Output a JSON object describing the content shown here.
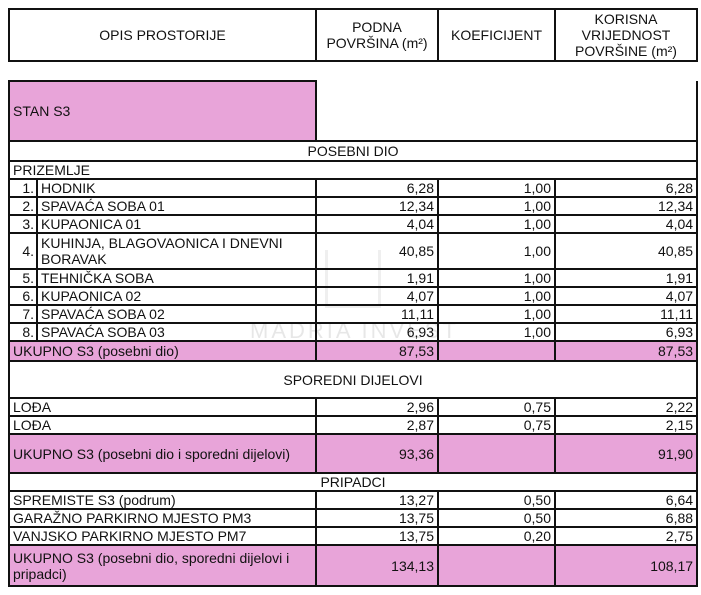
{
  "header": {
    "col1": "OPIS PROSTORIJE",
    "col2": "PODNA POVRŠINA (m²)",
    "col3": "KOEFICIJENT",
    "col4": "KORISNA VRIJEDNOST POVRŠINE (m²)"
  },
  "unit": "STAN S3",
  "sections": {
    "posebni": "POSEBNI DIO",
    "prizemlje": "PRIZEMLJE",
    "sporedni": "SPOREDNI DIJELOVI",
    "pripadci": "PRIPADCI"
  },
  "rooms": [
    {
      "no": "1.",
      "name": "HODNIK",
      "area": "6,28",
      "coef": "1,00",
      "useful": "6,28"
    },
    {
      "no": "2.",
      "name": "SPAVAĆA SOBA 01",
      "area": "12,34",
      "coef": "1,00",
      "useful": "12,34"
    },
    {
      "no": "3.",
      "name": "KUPAONICA 01",
      "area": "4,04",
      "coef": "1,00",
      "useful": "4,04"
    },
    {
      "no": "4.",
      "name": "KUHINJA, BLAGOVAONICA I DNEVNI BORAVAK",
      "area": "40,85",
      "coef": "1,00",
      "useful": "40,85"
    },
    {
      "no": "5.",
      "name": "TEHNIČKA SOBA",
      "area": "1,91",
      "coef": "1,00",
      "useful": "1,91"
    },
    {
      "no": "6.",
      "name": "KUPAONICA 02",
      "area": "4,07",
      "coef": "1,00",
      "useful": "4,07"
    },
    {
      "no": "7.",
      "name": "SPAVAĆA SOBA 02",
      "area": "11,11",
      "coef": "1,00",
      "useful": "11,11"
    },
    {
      "no": "8.",
      "name": "SPAVAĆA SOBA 03",
      "area": "6,93",
      "coef": "1,00",
      "useful": "6,93"
    }
  ],
  "total1": {
    "label": "UKUPNO S3 (posebni dio)",
    "area": "87,53",
    "useful": "87,53"
  },
  "side_parts": [
    {
      "name": "LOĐA",
      "area": "2,96",
      "coef": "0,75",
      "useful": "2,22"
    },
    {
      "name": "LOĐA",
      "area": "2,87",
      "coef": "0,75",
      "useful": "2,15"
    }
  ],
  "total2": {
    "label": "UKUPNO S3 (posebni dio i sporedni dijelovi)",
    "area": "93,36",
    "useful": "91,90"
  },
  "appurtenances": [
    {
      "name": "SPREMISTE S3 (podrum)",
      "area": "13,27",
      "coef": "0,50",
      "useful": "6,64"
    },
    {
      "name": "GARAŽNO PARKIRNO MJESTO PM3",
      "area": "13,75",
      "coef": "0,50",
      "useful": "6,88"
    },
    {
      "name": "VANJSKO PARKIRNO MJESTO PM7",
      "area": "13,75",
      "coef": "0,20",
      "useful": "2,75"
    }
  ],
  "total3": {
    "label": "UKUPNO S3 (posebni dio, sporedni dijelovi i pripadci)",
    "area": "134,13",
    "useful": "108,17"
  },
  "watermark": "MADRIA INVEST",
  "colors": {
    "highlight": "#e8a4d9",
    "border": "#111111"
  }
}
